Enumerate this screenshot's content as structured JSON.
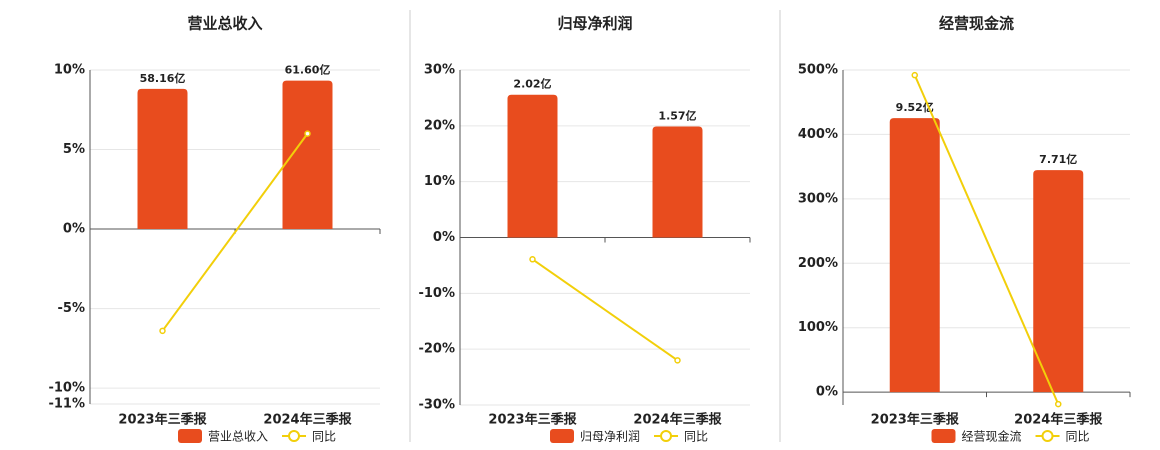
{
  "chart_data": [
    {
      "type": "bar",
      "title": "营业总收入",
      "categories": [
        "2023年三季报",
        "2024年三季报"
      ],
      "series": [
        {
          "name": "营业总收入",
          "color": "#e84c1e",
          "axis": "y2",
          "values": [
            58.16,
            61.6
          ],
          "value_labels": [
            "58.16亿",
            "61.60亿"
          ]
        },
        {
          "name": "同比",
          "type": "line",
          "color": "#f2cf0a",
          "values": [
            -6.4,
            6.0
          ]
        }
      ],
      "ylim": [
        -11,
        10
      ],
      "yticks": [
        {
          "value": 10,
          "label": "10%"
        },
        {
          "value": 5,
          "label": "5%"
        },
        {
          "value": 0,
          "label": "0%"
        },
        {
          "value": -5,
          "label": "-5%"
        },
        {
          "value": -10,
          "label": "-10%"
        },
        {
          "value": -11,
          "label": "-11%"
        }
      ],
      "y2lim": [
        -72.6,
        66
      ],
      "grid": true
    },
    {
      "type": "bar",
      "title": "归母净利润",
      "categories": [
        "2023年三季报",
        "2024年三季报"
      ],
      "series": [
        {
          "name": "归母净利润",
          "color": "#e84c1e",
          "axis": "y2",
          "values": [
            2.02,
            1.57
          ],
          "value_labels": [
            "2.02亿",
            "1.57亿"
          ]
        },
        {
          "name": "同比",
          "type": "line",
          "color": "#f2cf0a",
          "values": [
            -3.9,
            -22
          ]
        }
      ],
      "ylim": [
        -30,
        30
      ],
      "yticks": [
        {
          "value": 30,
          "label": "30%"
        },
        {
          "value": 20,
          "label": "20%"
        },
        {
          "value": 10,
          "label": "10%"
        },
        {
          "value": 0,
          "label": "0%"
        },
        {
          "value": -10,
          "label": "-10%"
        },
        {
          "value": -20,
          "label": "-20%"
        },
        {
          "value": -30,
          "label": "-30%"
        }
      ],
      "y2lim": [
        -2.37,
        2.37
      ],
      "grid": true
    },
    {
      "type": "bar",
      "title": "经营现金流",
      "categories": [
        "2023年三季报",
        "2024年三季报"
      ],
      "series": [
        {
          "name": "经营现金流",
          "color": "#e84c1e",
          "axis": "y2",
          "values": [
            9.52,
            7.71
          ],
          "value_labels": [
            "9.52亿",
            "7.71亿"
          ]
        },
        {
          "name": "同比",
          "type": "line",
          "color": "#f2cf0a",
          "values": [
            492,
            -18.6
          ]
        }
      ],
      "ylim": [
        -20,
        500
      ],
      "yticks": [
        {
          "value": 500,
          "label": "500%"
        },
        {
          "value": 400,
          "label": "400%"
        },
        {
          "value": 300,
          "label": "300%"
        },
        {
          "value": 200,
          "label": "200%"
        },
        {
          "value": 100,
          "label": "100%"
        },
        {
          "value": 0,
          "label": "0%"
        }
      ],
      "y2lim": [
        -0.448,
        11.19
      ],
      "grid": true
    }
  ]
}
